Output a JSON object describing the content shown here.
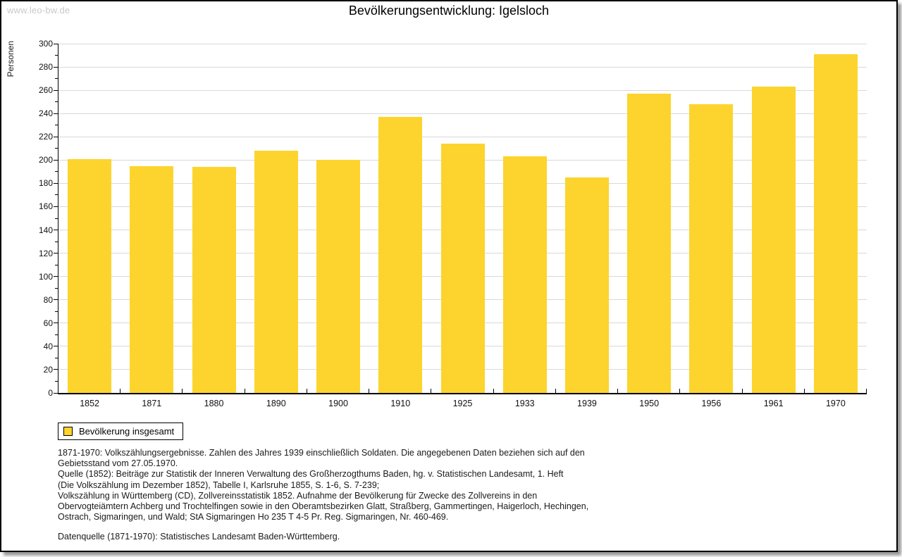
{
  "watermark": "www.leo-bw.de",
  "title": "Bevölkerungsentwicklung: Igelsloch",
  "chart_data": {
    "type": "bar",
    "title": "Bevölkerungsentwicklung: Igelsloch",
    "ylabel": "Personen",
    "xlabel": "",
    "categories": [
      "1852",
      "1871",
      "1880",
      "1890",
      "1900",
      "1910",
      "1925",
      "1933",
      "1939",
      "1950",
      "1956",
      "1961",
      "1970"
    ],
    "values": [
      201,
      195,
      194,
      208,
      200,
      237,
      214,
      203,
      185,
      257,
      248,
      263,
      291
    ],
    "ylim": [
      0,
      300
    ],
    "ytick_step": 20,
    "ytick_minor_step": 10,
    "grid": true,
    "legend_position": "bottom-left",
    "legend_entries": [
      "Bevölkerung insgesamt"
    ],
    "bar_color": "#fcd42d",
    "grid_color": "#d9d9d9"
  },
  "legend": {
    "label": "Bevölkerung insgesamt",
    "swatch_color": "#fcd42d"
  },
  "footer": {
    "lines": [
      "1871-1970: Volkszählungsergebnisse. Zahlen des Jahres 1939 einschließlich Soldaten. Die angegebenen Daten beziehen sich auf den",
      "Gebietsstand vom 27.05.1970.",
      "Quelle (1852): Beiträge zur Statistik der Inneren Verwaltung des Großherzogthums Baden, hg. v. Statistischen Landesamt, 1. Heft",
      "(Die Volkszählung im Dezember 1852), Tabelle I, Karlsruhe 1855, S. 1-6, S. 7-239;",
      "Volkszählung in Württemberg (CD), Zollvereinsstatistik 1852. Aufnahme der Bevölkerung für Zwecke des Zollvereins in den",
      "Obervogteiämtern Achberg und Trochtelfingen sowie in den Oberamtsbezirken Glatt, Straßberg, Gammertingen, Haigerloch, Hechingen,",
      "Ostrach, Sigmaringen, und Wald; StA Sigmaringen Ho 235 T 4-5 Pr. Reg. Sigmaringen, Nr. 460-469."
    ],
    "datasource": "Datenquelle (1871-1970): Statistisches Landesamt Baden-Württemberg."
  },
  "colors": {
    "bar": "#fcd42d",
    "grid": "#d9d9d9",
    "axis": "#000000",
    "watermark": "#c9c9c9",
    "background": "#ffffff"
  }
}
